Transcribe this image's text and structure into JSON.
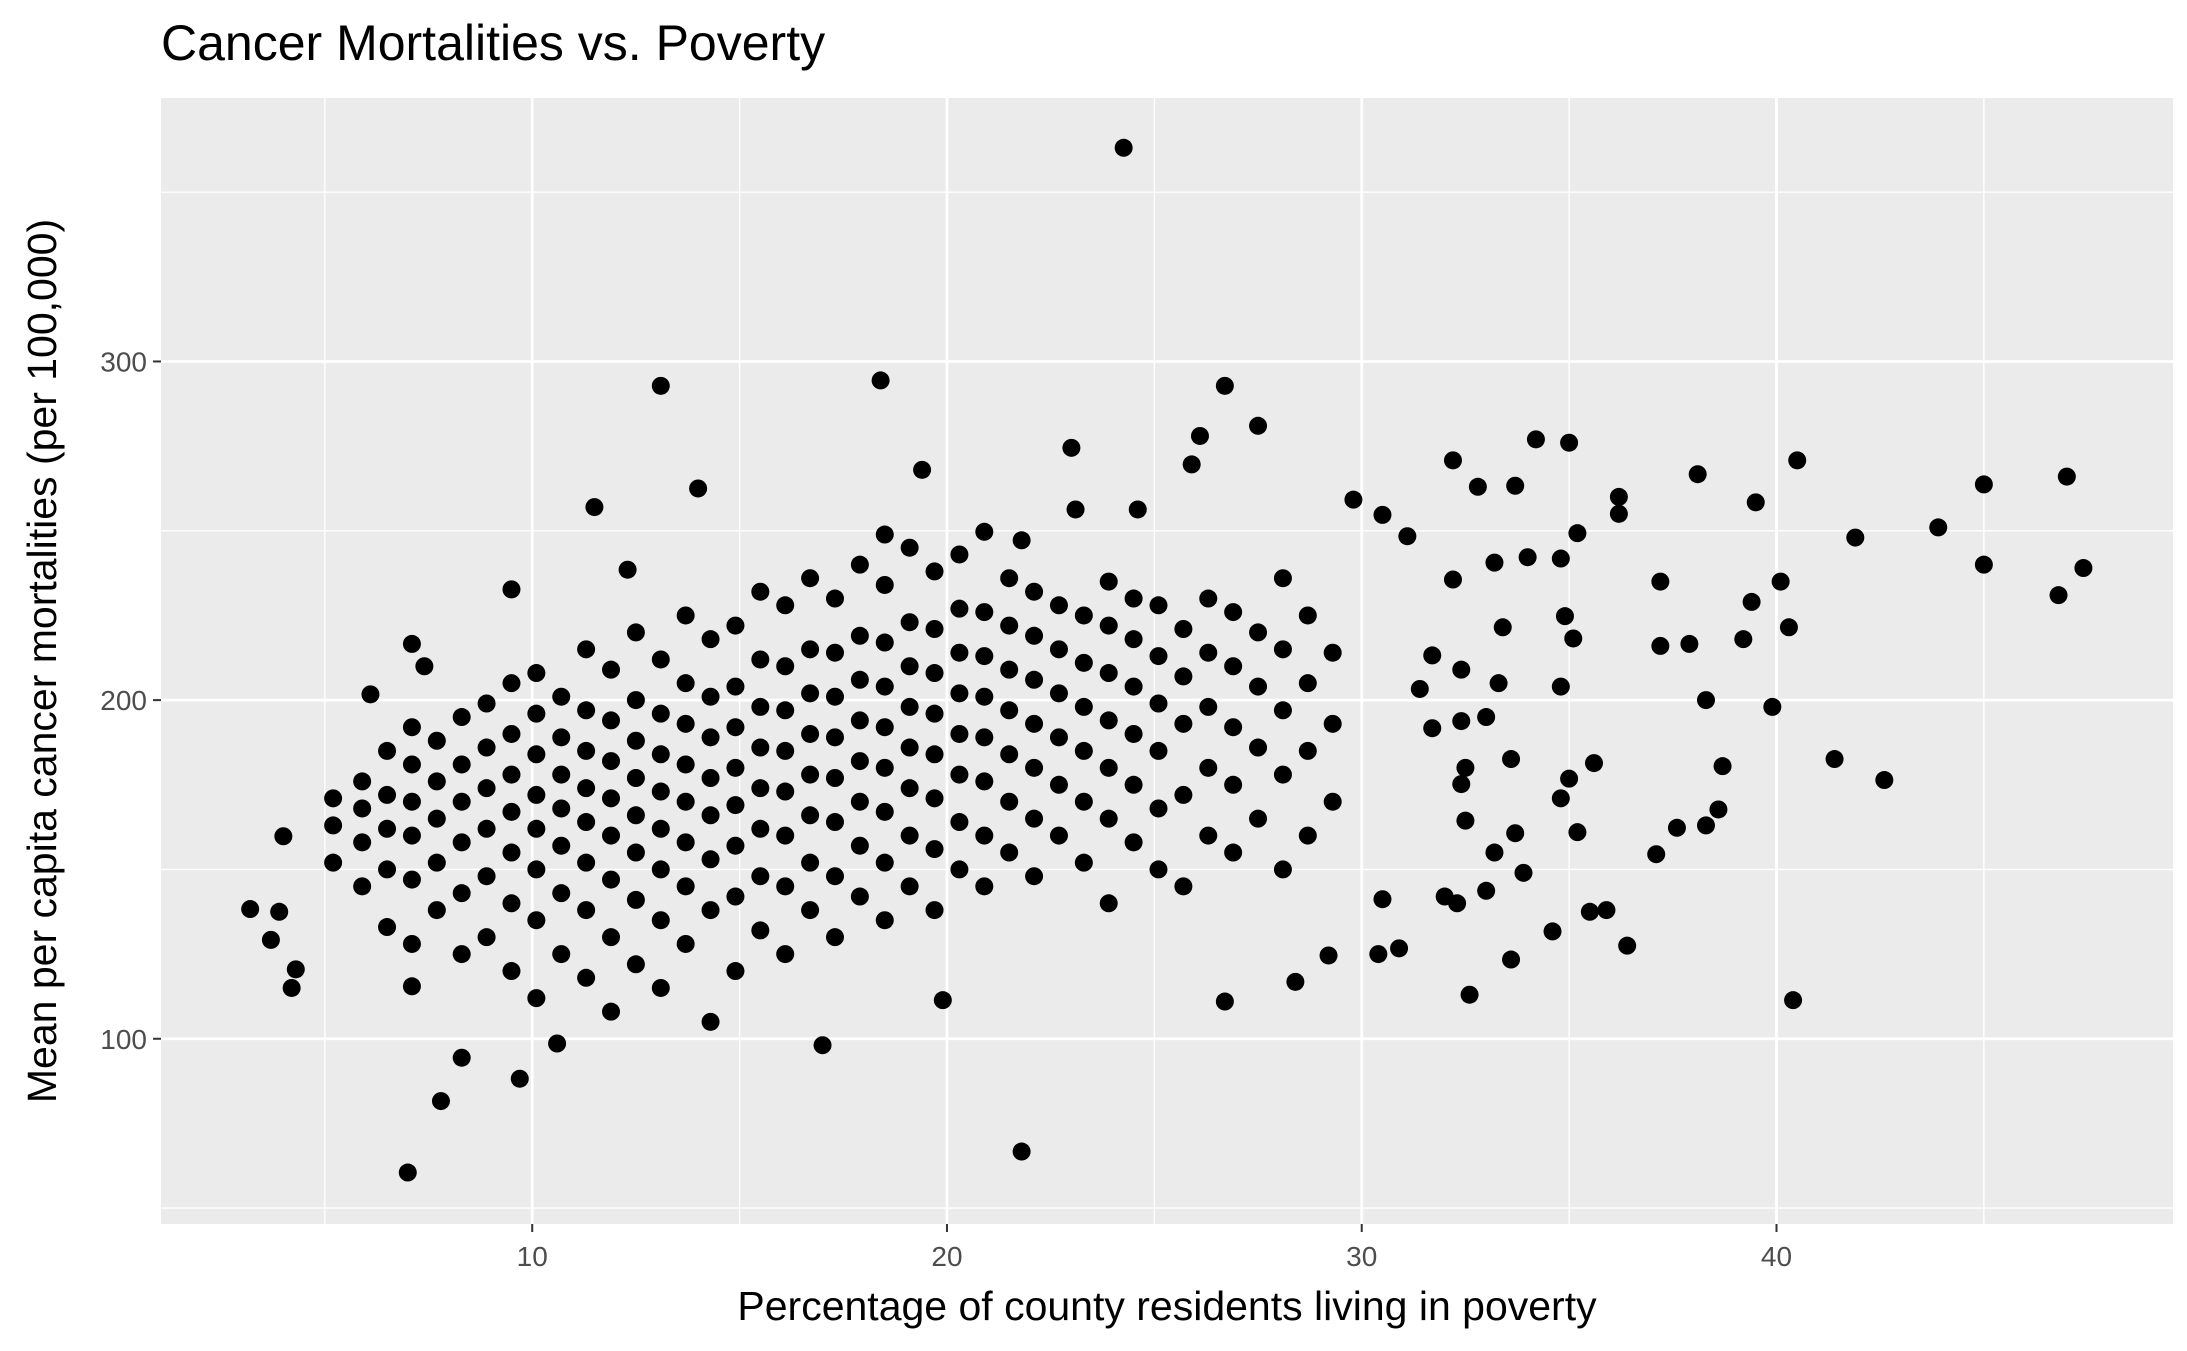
{
  "chart_data": {
    "type": "scatter",
    "title": "Cancer Mortalities vs. Poverty",
    "x_label": "Percentage of county residents living in poverty",
    "y_label": "Mean per capita cancer mortalities (per 100,000)",
    "color": "#000000",
    "xlim": [
      1.05,
      49.56
    ],
    "ylim": [
      45.3,
      377.8
    ],
    "xticks": [
      10,
      20,
      30,
      40
    ],
    "yticks": [
      100,
      200,
      300
    ],
    "x_minor_grid": [
      5,
      15,
      25,
      35,
      45
    ],
    "y_minor_grid": [
      50,
      150,
      250,
      350
    ],
    "grid": true,
    "x": [
      24.26,
      13.1,
      18.4,
      26.7,
      27.5,
      23.0,
      26.1,
      25.9,
      19.4,
      14.0,
      11.5,
      32.2,
      34.2,
      35.0,
      40.5,
      47.0,
      45.0,
      38.1,
      36.2,
      36.2,
      39.5,
      33.7,
      32.8,
      43.9,
      41.9,
      47.4,
      46.8,
      45.0,
      40.1,
      40.3,
      39.4,
      39.2,
      37.2,
      37.2,
      37.9,
      38.3,
      39.9,
      41.4,
      42.6,
      38.7,
      38.6,
      37.6,
      37.1,
      38.3,
      40.4,
      36.4,
      35.9,
      35.5,
      34.6,
      33.6,
      32.6,
      29.2,
      28.4,
      26.7,
      21.8,
      7.0,
      7.8,
      8.3,
      9.7,
      10.6,
      17.0,
      19.9,
      3.2,
      3.7,
      3.9,
      4.0,
      4.3,
      4.2,
      7.1,
      6.1,
      7.1,
      7.4,
      9.5,
      12.3,
      18.5,
      20.9,
      21.8,
      23.1,
      24.6,
      29.8,
      30.5,
      31.1,
      35.2,
      34.8,
      34.0,
      33.2,
      32.2,
      34.9,
      35.1,
      33.4,
      34.8,
      33.3,
      34.8,
      35.0,
      35.6,
      33.6,
      35.2,
      33.7,
      33.2,
      33.9,
      33.0,
      32.0,
      32.3,
      30.5,
      30.4,
      30.9,
      32.5,
      32.4,
      32.5,
      33.0,
      32.4,
      31.7,
      31.4,
      31.7,
      32.4,
      5.2,
      5.2,
      5.2,
      5.9,
      5.9,
      5.9,
      5.9,
      6.5,
      6.5,
      6.5,
      6.5,
      6.5,
      7.1,
      7.1,
      7.1,
      7.1,
      7.1,
      7.1,
      7.7,
      7.7,
      7.7,
      7.7,
      7.7,
      8.3,
      8.3,
      8.3,
      8.3,
      8.3,
      8.3,
      8.9,
      8.9,
      8.9,
      8.9,
      8.9,
      8.9,
      9.5,
      9.5,
      9.5,
      9.5,
      9.5,
      9.5,
      9.5,
      10.1,
      10.1,
      10.1,
      10.1,
      10.1,
      10.1,
      10.1,
      10.1,
      10.7,
      10.7,
      10.7,
      10.7,
      10.7,
      10.7,
      10.7,
      11.3,
      11.3,
      11.3,
      11.3,
      11.3,
      11.3,
      11.3,
      11.3,
      11.9,
      11.9,
      11.9,
      11.9,
      11.9,
      11.9,
      11.9,
      11.9,
      12.5,
      12.5,
      12.5,
      12.5,
      12.5,
      12.5,
      12.5,
      12.5,
      13.1,
      13.1,
      13.1,
      13.1,
      13.1,
      13.1,
      13.1,
      13.1,
      13.7,
      13.7,
      13.7,
      13.7,
      13.7,
      13.7,
      13.7,
      13.7,
      14.3,
      14.3,
      14.3,
      14.3,
      14.3,
      14.3,
      14.3,
      14.3,
      14.9,
      14.9,
      14.9,
      14.9,
      14.9,
      14.9,
      14.9,
      14.9,
      15.5,
      15.5,
      15.5,
      15.5,
      15.5,
      15.5,
      15.5,
      15.5,
      16.1,
      16.1,
      16.1,
      16.1,
      16.1,
      16.1,
      16.1,
      16.1,
      16.7,
      16.7,
      16.7,
      16.7,
      16.7,
      16.7,
      16.7,
      16.7,
      17.3,
      17.3,
      17.3,
      17.3,
      17.3,
      17.3,
      17.3,
      17.3,
      17.9,
      17.9,
      17.9,
      17.9,
      17.9,
      17.9,
      17.9,
      17.9,
      18.5,
      18.5,
      18.5,
      18.5,
      18.5,
      18.5,
      18.5,
      18.5,
      19.1,
      19.1,
      19.1,
      19.1,
      19.1,
      19.1,
      19.1,
      19.1,
      19.7,
      19.7,
      19.7,
      19.7,
      19.7,
      19.7,
      19.7,
      19.7,
      20.3,
      20.3,
      20.3,
      20.3,
      20.3,
      20.3,
      20.3,
      20.3,
      20.9,
      20.9,
      20.9,
      20.9,
      20.9,
      20.9,
      20.9,
      21.5,
      21.5,
      21.5,
      21.5,
      21.5,
      21.5,
      21.5,
      22.1,
      22.1,
      22.1,
      22.1,
      22.1,
      22.1,
      22.1,
      22.7,
      22.7,
      22.7,
      22.7,
      22.7,
      22.7,
      23.3,
      23.3,
      23.3,
      23.3,
      23.3,
      23.3,
      23.9,
      23.9,
      23.9,
      23.9,
      23.9,
      23.9,
      23.9,
      24.5,
      24.5,
      24.5,
      24.5,
      24.5,
      24.5,
      25.1,
      25.1,
      25.1,
      25.1,
      25.1,
      25.1,
      25.7,
      25.7,
      25.7,
      25.7,
      25.7,
      26.3,
      26.3,
      26.3,
      26.3,
      26.3,
      26.9,
      26.9,
      26.9,
      26.9,
      26.9,
      27.5,
      27.5,
      27.5,
      27.5,
      28.1,
      28.1,
      28.1,
      28.1,
      28.1,
      28.7,
      28.7,
      28.7,
      28.7,
      29.3,
      29.3,
      29.3
    ],
    "values": [
      363.1,
      292.8,
      294.4,
      292.8,
      281,
      274.5,
      278,
      269.6,
      268,
      262.5,
      257,
      270.8,
      277,
      276,
      270.8,
      266,
      263.7,
      266.7,
      260,
      255,
      258.4,
      263.3,
      263,
      251,
      248,
      239,
      231,
      240,
      235,
      221.5,
      229,
      218,
      235,
      216,
      216.6,
      200,
      198,
      182.6,
      176.4,
      180.5,
      167.7,
      162.3,
      154.5,
      163,
      111.4,
      127.5,
      138,
      137.5,
      131.7,
      123.4,
      113,
      124.6,
      116.8,
      111,
      66.7,
      60.5,
      81.6,
      94.4,
      88.2,
      98.6,
      98.1,
      111.4,
      138.3,
      129.2,
      137.5,
      159.8,
      120.5,
      115,
      115.5,
      201.7,
      216.6,
      210,
      232.7,
      238.5,
      248.9,
      249.7,
      247.2,
      256.3,
      256.3,
      259.2,
      254.7,
      248.4,
      249.3,
      241.8,
      242.2,
      240.6,
      235.6,
      224.8,
      218.2,
      221.5,
      204,
      205,
      171,
      176.8,
      181.4,
      182.6,
      161,
      160.7,
      155,
      149,
      143.7,
      142,
      140,
      141.2,
      125,
      126.7,
      164.4,
      175.2,
      180,
      195,
      193.8,
      191.7,
      203.3,
      213.2,
      209,
      152,
      163,
      171,
      145,
      158,
      168,
      176,
      133,
      150,
      162,
      172,
      185,
      128,
      147,
      160,
      170,
      181,
      192,
      138,
      152,
      165,
      176,
      188,
      125,
      143,
      158,
      170,
      181,
      195,
      130,
      148,
      162,
      174,
      186,
      199,
      120,
      140,
      155,
      167,
      178,
      190,
      205,
      112,
      135,
      150,
      162,
      172,
      184,
      196,
      208,
      125,
      143,
      157,
      168,
      178,
      189,
      201,
      118,
      138,
      152,
      164,
      174,
      185,
      197,
      215,
      108,
      130,
      147,
      160,
      171,
      182,
      194,
      209,
      122,
      141,
      155,
      166,
      177,
      188,
      200,
      220,
      115,
      135,
      150,
      162,
      173,
      184,
      196,
      212,
      128,
      145,
      158,
      170,
      181,
      193,
      205,
      225,
      105,
      138,
      153,
      166,
      177,
      189,
      201,
      218,
      120,
      142,
      157,
      169,
      180,
      192,
      204,
      222,
      132,
      148,
      162,
      174,
      186,
      198,
      212,
      232,
      125,
      145,
      160,
      173,
      185,
      197,
      210,
      228,
      138,
      152,
      166,
      178,
      190,
      202,
      215,
      236,
      130,
      148,
      164,
      177,
      189,
      201,
      214,
      230,
      142,
      157,
      170,
      182,
      194,
      206,
      219,
      240,
      135,
      152,
      167,
      180,
      192,
      204,
      217,
      234,
      145,
      160,
      174,
      186,
      198,
      210,
      223,
      245,
      138,
      156,
      171,
      184,
      196,
      208,
      221,
      238,
      150,
      164,
      178,
      190,
      202,
      214,
      227,
      243,
      145,
      160,
      176,
      189,
      201,
      213,
      226,
      155,
      170,
      184,
      197,
      209,
      222,
      236,
      148,
      165,
      180,
      193,
      206,
      219,
      232,
      160,
      175,
      189,
      202,
      215,
      228,
      152,
      170,
      185,
      198,
      211,
      225,
      140,
      165,
      180,
      194,
      208,
      222,
      235,
      158,
      175,
      190,
      204,
      218,
      230,
      150,
      168,
      185,
      199,
      213,
      228,
      145,
      172,
      193,
      207,
      221,
      160,
      180,
      198,
      214,
      230,
      155,
      175,
      192,
      210,
      226,
      165,
      186,
      204,
      220,
      150,
      178,
      197,
      215,
      236,
      160,
      185,
      205,
      225,
      170,
      193,
      214
    ]
  }
}
